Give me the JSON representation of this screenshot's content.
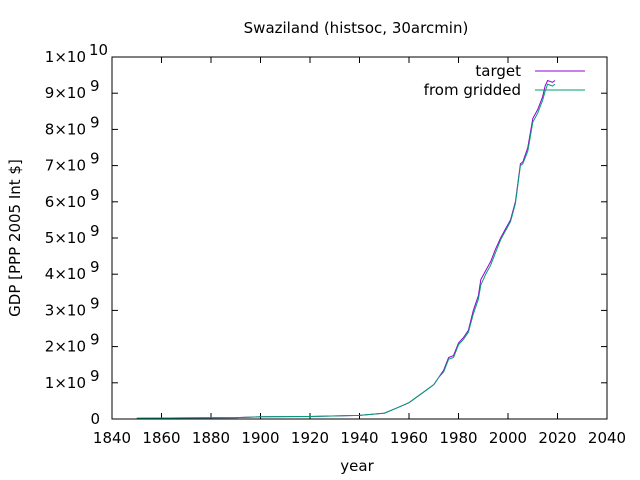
{
  "chart_data": {
    "type": "line",
    "title": "Swaziland (histsoc, 30arcmin)",
    "xlabel": "year",
    "ylabel": "GDP [PPP 2005 Int $]",
    "xlim": [
      1840,
      2040
    ],
    "ylim": [
      0,
      10000000000
    ],
    "x_ticks": [
      1840,
      1860,
      1880,
      1900,
      1920,
      1940,
      1960,
      1980,
      2000,
      2020,
      2040
    ],
    "x_tick_labels": [
      "1840",
      "1860",
      "1880",
      "1900",
      "1920",
      "1940",
      "1960",
      "1980",
      "2000",
      "2020",
      "2040"
    ],
    "y_ticks": [
      {
        "value": 0,
        "base": "0",
        "exp": ""
      },
      {
        "value": 1000000000,
        "base": "1×10",
        "exp": "9"
      },
      {
        "value": 2000000000,
        "base": "2×10",
        "exp": "9"
      },
      {
        "value": 3000000000,
        "base": "3×10",
        "exp": "9"
      },
      {
        "value": 4000000000,
        "base": "4×10",
        "exp": "9"
      },
      {
        "value": 5000000000,
        "base": "5×10",
        "exp": "9"
      },
      {
        "value": 6000000000,
        "base": "6×10",
        "exp": "9"
      },
      {
        "value": 7000000000,
        "base": "7×10",
        "exp": "9"
      },
      {
        "value": 8000000000,
        "base": "8×10",
        "exp": "9"
      },
      {
        "value": 9000000000,
        "base": "9×10",
        "exp": "9"
      },
      {
        "value": 10000000000,
        "base": "1×10",
        "exp": "10"
      }
    ],
    "grid": false,
    "legend_position": "top-right",
    "series": [
      {
        "name": "target",
        "color": "#9400d3",
        "points": [
          [
            1850,
            20000000
          ],
          [
            1870,
            30000000
          ],
          [
            1890,
            40000000
          ],
          [
            1900,
            60000000
          ],
          [
            1920,
            70000000
          ],
          [
            1940,
            100000000
          ],
          [
            1950,
            160000000
          ],
          [
            1955,
            300000000
          ],
          [
            1960,
            450000000
          ],
          [
            1965,
            700000000
          ],
          [
            1970,
            950000000
          ],
          [
            1972,
            1150000000
          ],
          [
            1974,
            1350000000
          ],
          [
            1976,
            1700000000
          ],
          [
            1978,
            1750000000
          ],
          [
            1980,
            2100000000
          ],
          [
            1982,
            2250000000
          ],
          [
            1984,
            2450000000
          ],
          [
            1986,
            3000000000
          ],
          [
            1988,
            3400000000
          ],
          [
            1989,
            3850000000
          ],
          [
            1991,
            4100000000
          ],
          [
            1993,
            4350000000
          ],
          [
            1995,
            4700000000
          ],
          [
            1997,
            5000000000
          ],
          [
            1999,
            5250000000
          ],
          [
            2001,
            5500000000
          ],
          [
            2003,
            6000000000
          ],
          [
            2005,
            7050000000
          ],
          [
            2006,
            7100000000
          ],
          [
            2008,
            7500000000
          ],
          [
            2010,
            8300000000
          ],
          [
            2012,
            8550000000
          ],
          [
            2014,
            8900000000
          ],
          [
            2015,
            9200000000
          ],
          [
            2016,
            9350000000
          ],
          [
            2018,
            9300000000
          ],
          [
            2019,
            9350000000
          ]
        ]
      },
      {
        "name": "from gridded",
        "color": "#009e73",
        "points": [
          [
            1850,
            20000000
          ],
          [
            1870,
            30000000
          ],
          [
            1890,
            40000000
          ],
          [
            1900,
            60000000
          ],
          [
            1920,
            70000000
          ],
          [
            1940,
            100000000
          ],
          [
            1950,
            160000000
          ],
          [
            1955,
            300000000
          ],
          [
            1960,
            450000000
          ],
          [
            1965,
            700000000
          ],
          [
            1970,
            950000000
          ],
          [
            1972,
            1150000000
          ],
          [
            1974,
            1300000000
          ],
          [
            1976,
            1650000000
          ],
          [
            1978,
            1700000000
          ],
          [
            1980,
            2050000000
          ],
          [
            1982,
            2200000000
          ],
          [
            1984,
            2400000000
          ],
          [
            1986,
            2900000000
          ],
          [
            1988,
            3300000000
          ],
          [
            1989,
            3700000000
          ],
          [
            1991,
            4000000000
          ],
          [
            1993,
            4250000000
          ],
          [
            1995,
            4600000000
          ],
          [
            1997,
            4950000000
          ],
          [
            1999,
            5200000000
          ],
          [
            2001,
            5450000000
          ],
          [
            2003,
            5950000000
          ],
          [
            2005,
            7000000000
          ],
          [
            2006,
            7050000000
          ],
          [
            2008,
            7400000000
          ],
          [
            2010,
            8200000000
          ],
          [
            2012,
            8450000000
          ],
          [
            2014,
            8800000000
          ],
          [
            2015,
            9050000000
          ],
          [
            2016,
            9250000000
          ],
          [
            2018,
            9200000000
          ],
          [
            2019,
            9250000000
          ]
        ]
      }
    ]
  }
}
